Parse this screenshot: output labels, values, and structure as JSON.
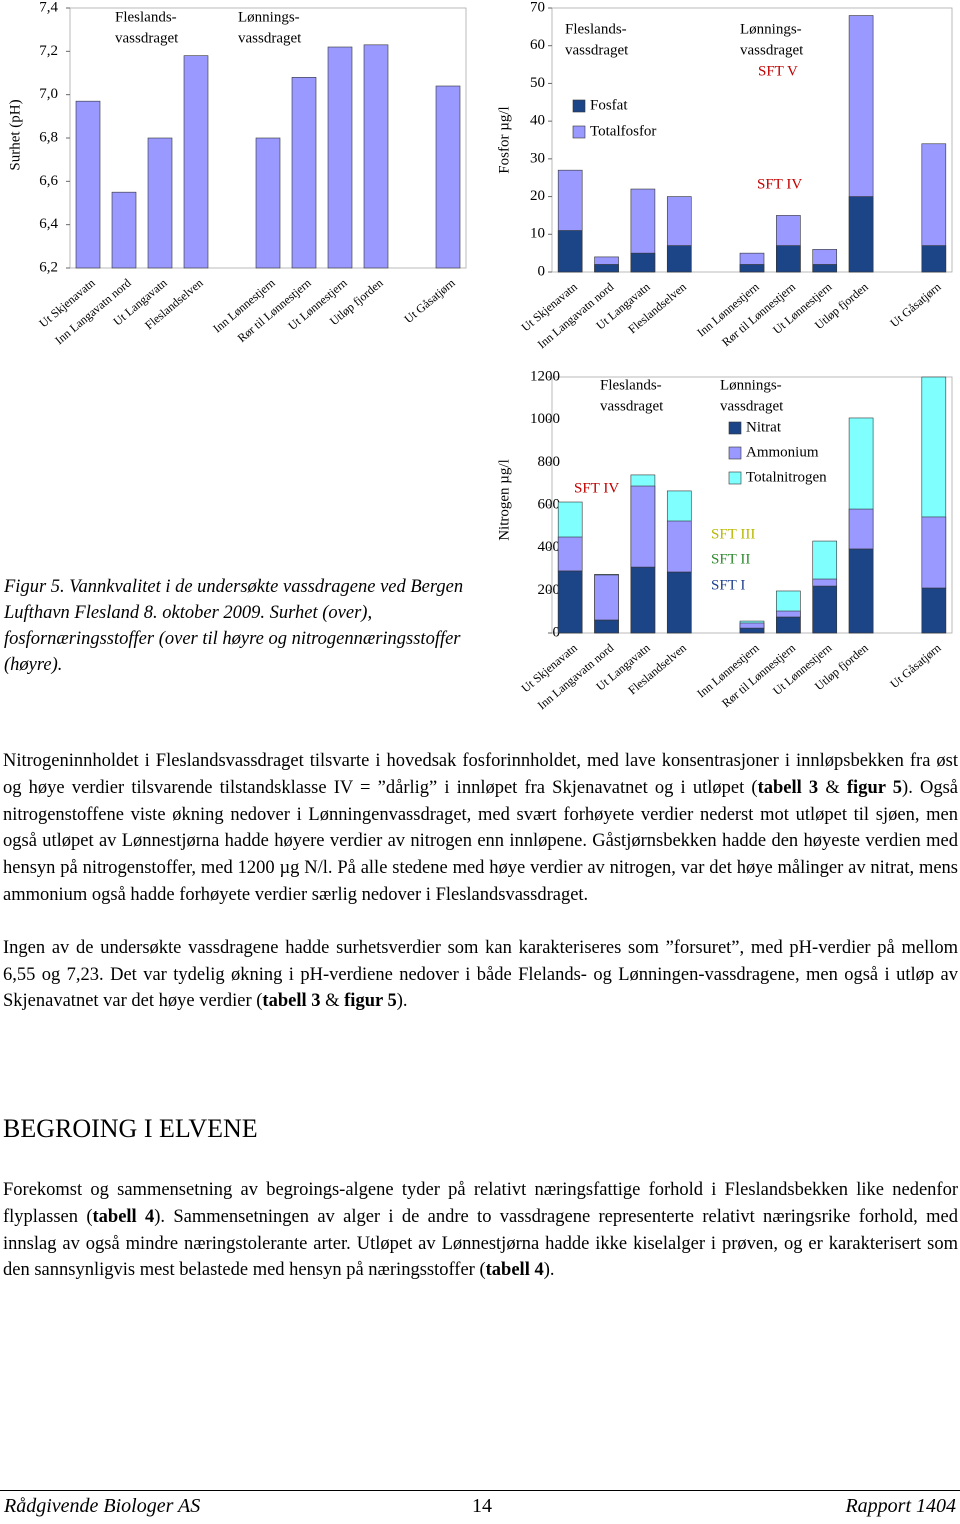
{
  "chart_data": [
    {
      "type": "bar",
      "y_label": "Surhet (pH)",
      "categories": [
        "Ut Skjenavatn",
        "Inn Langavatn nord",
        "Ut Langavatn",
        "Fleslandselven",
        null,
        "Inn Lønnestjern",
        "Rør til Lønnestjern",
        "Ut Lønnestjern",
        "Utløp fjorden",
        null,
        "Ut Gåsatjørn"
      ],
      "values": [
        6.97,
        6.55,
        6.8,
        7.18,
        null,
        6.8,
        7.08,
        7.22,
        7.23,
        null,
        7.04
      ],
      "color": "#9999ff",
      "ylim": [
        6.2,
        7.4
      ],
      "yticks": [
        {
          "value": 6.2,
          "label": "6,2"
        },
        {
          "value": 6.4,
          "label": "6,4"
        },
        {
          "value": 6.6,
          "label": "6,6"
        },
        {
          "value": 6.8,
          "label": "6,8"
        },
        {
          "value": 7.0,
          "label": "7,0"
        },
        {
          "value": 7.2,
          "label": "7,2"
        },
        {
          "value": 7.4,
          "label": "7,4"
        }
      ],
      "annotations": [
        {
          "lines": [
            "Fleslands-",
            "vassdraget"
          ]
        },
        {
          "lines": [
            "Lønnings-",
            "vassdraget"
          ]
        }
      ]
    },
    {
      "type": "bar",
      "y_label": "Fosfor µg/l",
      "barmode": "overlay",
      "categories": [
        "Ut Skjenavatn",
        "Inn Langavatn nord",
        "Ut Langavatn",
        "Fleslandselven",
        null,
        "Inn Lønnestjern",
        "Rør til Lønnestjern",
        "Ut Lønnestjern",
        "Utløp fjorden",
        null,
        "Ut Gåsatjørn"
      ],
      "series": [
        {
          "name": "Fosfat",
          "color": "#1c4587",
          "values": [
            11,
            2,
            5,
            7,
            null,
            2,
            7,
            2,
            20,
            null,
            7
          ]
        },
        {
          "name": "Totalfosfor",
          "color": "#9999ff",
          "values": [
            27,
            4,
            22,
            20,
            null,
            5,
            15,
            6,
            68,
            null,
            34
          ]
        }
      ],
      "ylim": [
        0,
        70
      ],
      "yticks": [
        0,
        10,
        20,
        30,
        40,
        50,
        60,
        70
      ],
      "annotations": [
        {
          "lines": [
            "Fleslands-",
            "vassdraget"
          ]
        },
        {
          "lines": [
            "Lønnings-",
            "vassdraget"
          ]
        },
        {
          "text": "SFT V",
          "color": "#c00000"
        },
        {
          "text": "SFT IV",
          "color": "#c00000"
        }
      ]
    },
    {
      "type": "bar",
      "y_label": "Nitrogen µg/l",
      "categories": [
        "Ut Skjenavatn",
        "Inn Langavatn nord",
        "Ut Langavatn",
        "Fleslandselven",
        null,
        "Inn Lønnestjern",
        "Rør til Lønnestjern",
        "Ut Lønnestjern",
        "Utløp fjorden",
        null,
        "Ut Gåsatjørn"
      ],
      "series": [
        {
          "name": "Nitrat",
          "color": "#1c4587",
          "stack": true,
          "values": [
            291,
            61,
            309,
            286,
            null,
            23,
            75,
            220,
            394,
            null,
            211
          ]
        },
        {
          "name": "Ammonium",
          "color": "#9999ff",
          "stack": true,
          "values": [
            159,
            211,
            380,
            239,
            null,
            24,
            28,
            33,
            187,
            null,
            333
          ]
        },
        {
          "name": "Totalnitrogen",
          "color": "#80ffff",
          "values": [
            614,
            275,
            741,
            666,
            null,
            56,
            197,
            431,
            1008,
            null,
            1200
          ]
        }
      ],
      "ylim": [
        0,
        1200
      ],
      "yticks": [
        0,
        200,
        400,
        600,
        800,
        1000,
        1200
      ],
      "annotations": [
        {
          "lines": [
            "Fleslands-",
            "vassdraget"
          ]
        },
        {
          "lines": [
            "Lønnings-",
            "vassdraget"
          ]
        },
        {
          "text": "SFT IV",
          "color": "#c00000"
        },
        {
          "text": "SFT III",
          "color": "#b8b800"
        },
        {
          "text": "SFT II",
          "color": "#2e8b2e"
        },
        {
          "text": "SFT I",
          "color": "#1f3f8f"
        }
      ]
    }
  ],
  "caption": "Figur 5. Vannkvalitet i de undersøkte vassdragene ved Bergen Lufthavn Flesland 8. oktober 2009. Surhet (over), fosfornæringsstoffer (over til høyre og nitrogennæringsstoffer (høyre).",
  "body": {
    "paragraphs": [
      [
        {
          "text": "Nitrogeninnholdet i Fleslandsvassdraget tilsvarte i hovedsak fosforinnholdet, med lave konsentrasjoner i innløpsbekken fra øst og høye verdier tilsvarende tilstandsklasse IV = ”dårlig” i innløpet fra Skjenavatnet og i utløpet ("
        },
        {
          "text": "tabell 3",
          "bold": true
        },
        {
          "text": " & "
        },
        {
          "text": "figur 5",
          "bold": true
        },
        {
          "text": "). Også nitrogenstoffene viste økning nedover i Lønningenvassdraget, med svært forhøyete verdier nederst mot utløpet til sjøen, men også utløpet av Lønnestjørna hadde høyere verdier av nitrogen enn innløpene. Gåstjørnsbekken hadde den høyeste verdien med hensyn på nitrogenstoffer, med 1200 µg N/l.  På alle stedene med høye verdier av nitrogen, var det høye målinger av nitrat, mens ammonium også hadde forhøyete verdier særlig nedover i Fleslandsvassdraget."
        }
      ],
      [
        {
          "text": "Ingen av de undersøkte vassdragene hadde surhetsverdier som kan karakteriseres som ”forsuret”, med pH-verdier på mellom 6,55 og 7,23. Det var tydelig økning i pH-verdiene nedover i både Flelands- og Lønningen-vassdragene, men også i utløp av Skjenavatnet var det høye verdier ("
        },
        {
          "text": "tabell 3",
          "bold": true
        },
        {
          "text": " & "
        },
        {
          "text": "figur 5",
          "bold": true
        },
        {
          "text": ")."
        }
      ]
    ]
  },
  "section": {
    "heading": "BEGROING I ELVENE",
    "paragraphs": [
      [
        {
          "text": "Forekomst og sammensetning av begroings-algene tyder på relativt næringsfattige forhold i Fleslandsbekken like nedenfor flyplassen ("
        },
        {
          "text": "tabell 4",
          "bold": true
        },
        {
          "text": "). Sammensetningen av alger i de andre to vassdragene representerte relativt næringsrike forhold, med innslag av også mindre næringstolerante arter. Utløpet av Lønnestjørna hadde ikke kiselalger i prøven, og er karakterisert som den sannsynligvis mest belastede med hensyn på næringsstoffer ("
        },
        {
          "text": "tabell 4",
          "bold": true
        },
        {
          "text": ")."
        }
      ]
    ]
  },
  "footer": {
    "left": "Rådgivende Biologer AS",
    "page": 14,
    "right": "Rapport 1404"
  }
}
